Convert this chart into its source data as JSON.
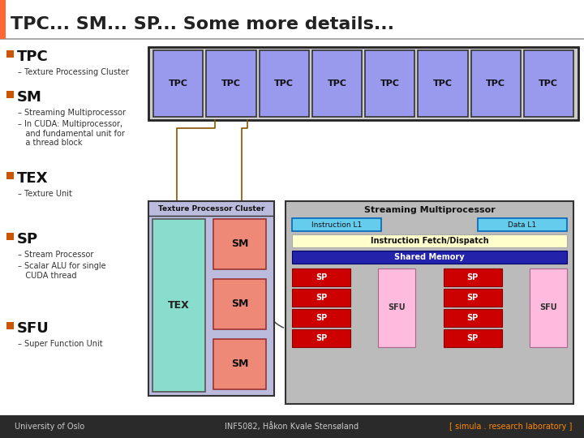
{
  "title": "TPC... SM... SP... Some more details...",
  "title_color": "#222222",
  "title_bar_color": "#FF6633",
  "background_color": "#FFFFFF",
  "footer_bg": "#2A2A2A",
  "footer_left": "University of Oslo",
  "footer_mid": "INF5082, Håkon Kvale Stensøland",
  "footer_right": "[ simula . research laboratory ]",
  "bullet_color": "#CC5500",
  "bullet_items": [
    {
      "label": "TPC",
      "sub": [
        "Texture Processing Cluster"
      ]
    },
    {
      "label": "SM",
      "sub": [
        "Streaming Multiprocessor",
        "In CUDA: Multiprocessor,\nand fundamental unit for\na thread block"
      ]
    },
    {
      "label": "TEX",
      "sub": [
        "Texture Unit"
      ]
    },
    {
      "label": "SP",
      "sub": [
        "Stream Processor",
        "Scalar ALU for single\nCUDA thread"
      ]
    },
    {
      "label": "SFU",
      "sub": [
        "Super Function Unit"
      ]
    }
  ],
  "tpc_outer_bg": "#DDDDEE",
  "tpc_box_color": "#9999EE",
  "tpc_count": 8,
  "tex_color": "#88DDCC",
  "sm_color": "#EE8877",
  "sp_color": "#CC0000",
  "sfu_color": "#FFBBDD",
  "shared_mem_color": "#2222AA",
  "instr_fetch_color": "#FFFFCC",
  "instr_l1_color": "#66CCEE",
  "tpc_cluster_bg": "#BBBBDD",
  "sm_detail_bg": "#BBBBBB",
  "dash_color": "#885500",
  "sub_dash_color": "#CC7700"
}
